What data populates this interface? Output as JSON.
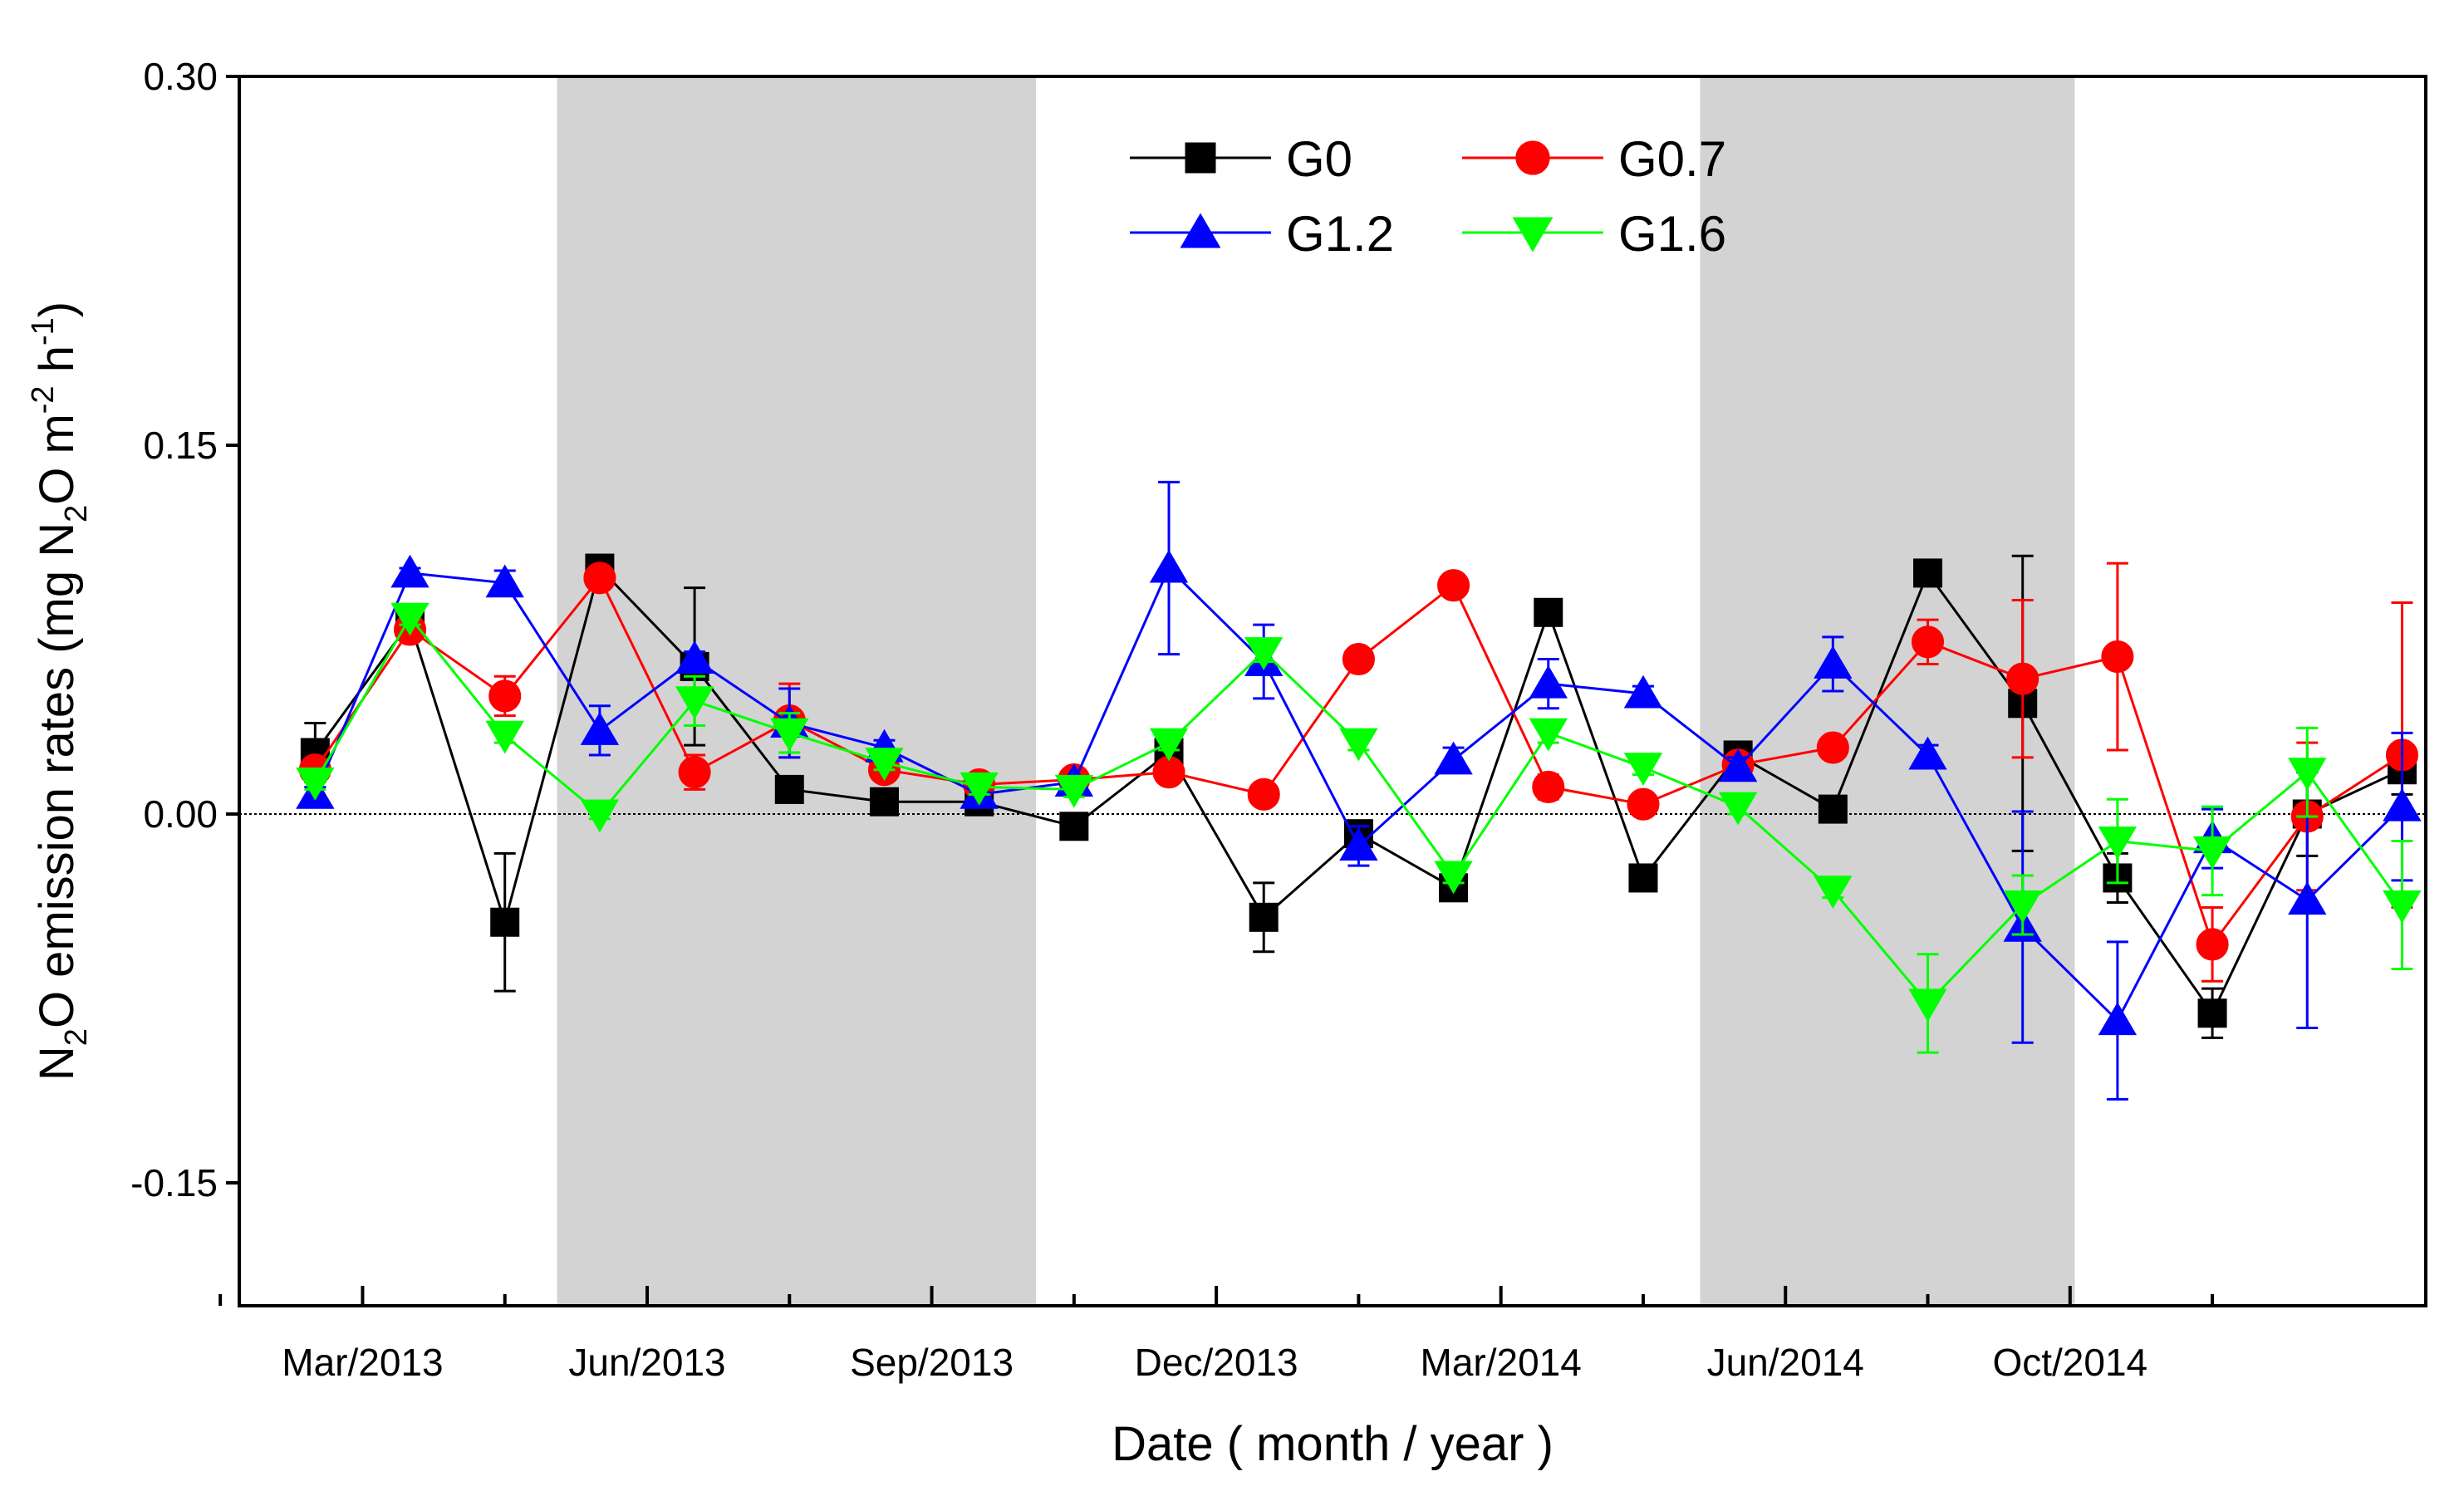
{
  "chart_data": {
    "type": "line",
    "xlabel": "Date ( month / year )",
    "ylabel": {
      "pre": "N",
      "sub1": "2",
      "mid": "O emission rates (mg N",
      "sub2": "2",
      "mid2": "O m",
      "sup1": "-2",
      "mid3": " h",
      "sup2": "-1",
      "post": ")"
    },
    "ylim": [
      -0.2,
      0.3
    ],
    "yticks": [
      "-0.15",
      "0.00",
      "0.15",
      "0.30"
    ],
    "ytick_values": [
      -0.15,
      0,
      0.15,
      0.3
    ],
    "xlim": [
      0.2,
      23.25
    ],
    "xtick_positions": [
      1.5,
      4.5,
      7.5,
      10.5,
      13.5,
      16.5,
      19.5
    ],
    "xtick_labels": [
      "Mar/2013",
      "Jun/2013",
      "Sep/2013",
      "Dec/2013",
      "Mar/2014",
      "Jun/2014",
      "Oct/2014"
    ],
    "minor_tick_positions": [
      0,
      3,
      6,
      9,
      12,
      15,
      18,
      21
    ],
    "shaded_periods": [
      [
        3.55,
        8.6
      ],
      [
        15.6,
        19.55
      ]
    ],
    "reference_line_y": 0,
    "x": [
      1,
      2,
      3,
      4,
      5,
      6,
      7,
      8,
      9,
      10,
      11,
      12,
      13,
      14,
      15,
      16,
      17,
      18,
      19,
      20,
      21,
      22,
      23
    ],
    "series": [
      {
        "name": "G0",
        "color": "#000000",
        "marker": "square",
        "values": [
          0.025,
          0.078,
          -0.044,
          0.1,
          0.06,
          0.01,
          0.005,
          0.005,
          -0.005,
          0.025,
          -0.042,
          -0.008,
          -0.03,
          0.082,
          -0.026,
          0.024,
          0.002,
          0.098,
          0.045,
          -0.026,
          -0.081,
          0.0,
          0.018
        ],
        "errors": [
          0.012,
          0.002,
          0.028,
          0.002,
          0.032,
          0.002,
          0.002,
          0.002,
          0.002,
          0.002,
          0.014,
          0.004,
          0.003,
          0.002,
          0.002,
          0.002,
          0.002,
          0.002,
          0.06,
          0.01,
          0.01,
          0.017,
          0.01
        ]
      },
      {
        "name": "G0.7",
        "color": "#ff0000",
        "marker": "circle",
        "values": [
          0.018,
          0.075,
          0.048,
          0.096,
          0.017,
          0.038,
          0.018,
          0.012,
          0.014,
          0.017,
          0.008,
          0.063,
          0.093,
          0.011,
          0.004,
          0.02,
          0.027,
          0.07,
          0.055,
          0.064,
          -0.053,
          -0.001,
          0.024
        ],
        "errors": [
          0.003,
          0.003,
          0.008,
          0.003,
          0.007,
          0.015,
          0.004,
          0.003,
          0.003,
          0.003,
          0.003,
          0.003,
          0.003,
          0.005,
          0.003,
          0.003,
          0.003,
          0.009,
          0.032,
          0.038,
          0.015,
          0.03,
          0.062
        ]
      },
      {
        "name": "G1.2",
        "color": "#0000ff",
        "marker": "triangle-up",
        "values": [
          0.008,
          0.098,
          0.094,
          0.034,
          0.063,
          0.037,
          0.027,
          0.008,
          0.013,
          0.1,
          0.062,
          -0.013,
          0.022,
          0.053,
          0.049,
          0.019,
          0.061,
          0.024,
          -0.046,
          -0.084,
          -0.01,
          -0.035,
          0.003
        ],
        "errors": [
          0.003,
          0.002,
          0.005,
          0.01,
          0.003,
          0.014,
          0.003,
          0.003,
          0.002,
          0.035,
          0.015,
          0.008,
          0.005,
          0.01,
          0.003,
          0.004,
          0.011,
          0.004,
          0.047,
          0.032,
          0.012,
          0.052,
          0.03
        ]
      },
      {
        "name": "G1.6",
        "color": "#00ff00",
        "marker": "triangle-down",
        "values": [
          0.013,
          0.08,
          0.032,
          0.0,
          0.046,
          0.033,
          0.021,
          0.011,
          0.01,
          0.029,
          0.066,
          0.029,
          -0.025,
          0.033,
          0.019,
          0.003,
          -0.031,
          -0.077,
          -0.037,
          -0.011,
          -0.015,
          0.017,
          -0.037
        ],
        "errors": [
          0.003,
          0.003,
          0.003,
          0.002,
          0.01,
          0.008,
          0.003,
          0.003,
          0.003,
          0.003,
          0.004,
          0.003,
          0.003,
          0.004,
          0.003,
          0.003,
          0.003,
          0.02,
          0.012,
          0.017,
          0.018,
          0.018,
          0.026
        ]
      }
    ],
    "legend": {
      "placement": "top-center",
      "columns": 2
    }
  }
}
